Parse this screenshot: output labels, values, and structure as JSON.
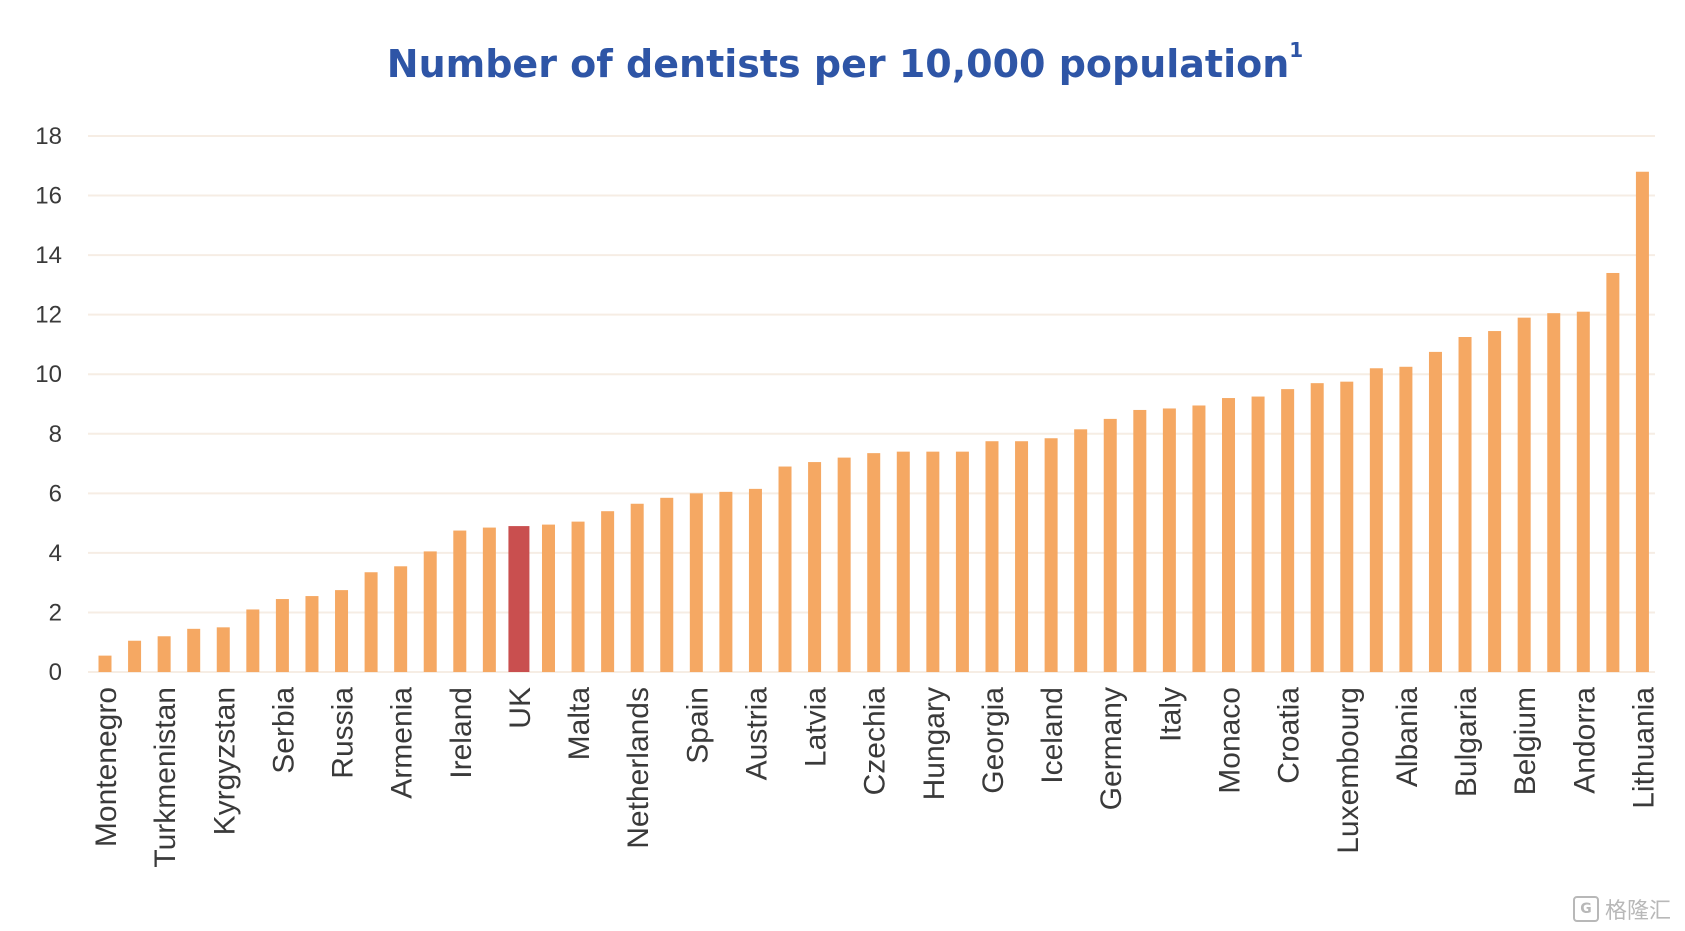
{
  "chart_data": {
    "type": "bar",
    "title": "Number of dentists per 10,000 population",
    "title_superscript": "1",
    "xlabel": "",
    "ylabel": "",
    "ylim": [
      0,
      18
    ],
    "yticks": [
      0,
      2,
      4,
      6,
      8,
      10,
      12,
      14,
      16,
      18
    ],
    "grid": true,
    "highlight_category": "UK",
    "colors": {
      "bar": "#f5a863",
      "highlight": "#c94f4f",
      "title": "#2e55a6"
    },
    "categories": [
      "Montenegro",
      "",
      "Turkmenistan",
      "",
      "Kyrgyzstan",
      "",
      "Serbia",
      "",
      "Russia",
      "",
      "Armenia",
      "",
      "Ireland",
      "",
      "UK",
      "",
      "Malta",
      "",
      "Netherlands",
      "",
      "Spain",
      "",
      "Austria",
      "",
      "Latvia",
      "",
      "Czechia",
      "",
      "Hungary",
      "",
      "Georgia",
      "",
      "Iceland",
      "",
      "Germany",
      "",
      "Italy",
      "",
      "Monaco",
      "",
      "Croatia",
      "",
      "Luxembourg",
      "",
      "Albania",
      "",
      "Bulgaria",
      "",
      "Belgium",
      "",
      "Andorra",
      "",
      "Lithuania"
    ],
    "values": [
      0.55,
      1.05,
      1.2,
      1.45,
      1.5,
      2.1,
      2.45,
      2.55,
      2.75,
      3.35,
      3.55,
      4.05,
      4.75,
      4.85,
      4.9,
      4.95,
      5.05,
      5.4,
      5.65,
      5.85,
      6.0,
      6.05,
      6.15,
      6.9,
      7.05,
      7.2,
      7.35,
      7.4,
      7.4,
      7.4,
      7.75,
      7.75,
      7.85,
      8.15,
      8.5,
      8.8,
      8.85,
      8.95,
      9.2,
      9.25,
      9.5,
      9.7,
      9.75,
      10.2,
      10.25,
      10.75,
      11.25,
      11.45,
      11.9,
      12.05,
      12.1,
      13.4,
      16.8
    ]
  },
  "watermark": {
    "icon": "G",
    "text": "格隆汇"
  }
}
